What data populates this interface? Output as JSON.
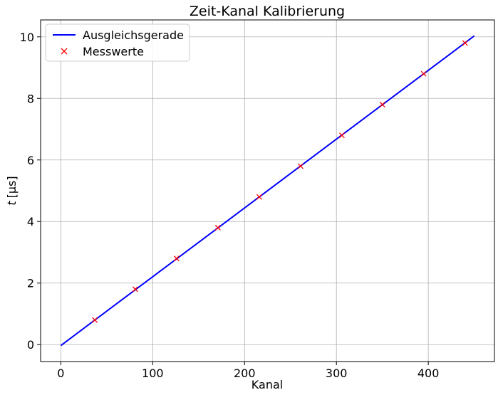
{
  "chart_data": {
    "type": "line",
    "title": "Zeit-Kanal Kalibrierung",
    "xlabel": "Kanal",
    "ylabel_var": "t",
    "ylabel_unit": "[µs]",
    "xlim": [
      -22,
      472
    ],
    "ylim": [
      -0.55,
      10.55
    ],
    "xticks": [
      0,
      100,
      200,
      300,
      400
    ],
    "yticks": [
      0,
      2,
      4,
      6,
      8,
      10
    ],
    "grid": true,
    "legend_position": "top-left",
    "series": [
      {
        "name": "Ausgleichsgerade",
        "kind": "line",
        "color": "#0000ff",
        "x": [
          0,
          450
        ],
        "y": [
          -0.03,
          10.03
        ]
      },
      {
        "name": "Messwerte",
        "kind": "scatter",
        "marker": "x",
        "color": "#ff0000",
        "x": [
          37,
          81,
          126,
          171,
          216,
          261,
          306,
          350,
          395,
          440
        ],
        "y": [
          0.8,
          1.8,
          2.8,
          3.8,
          4.8,
          5.8,
          6.8,
          7.8,
          8.8,
          9.8
        ]
      }
    ]
  }
}
